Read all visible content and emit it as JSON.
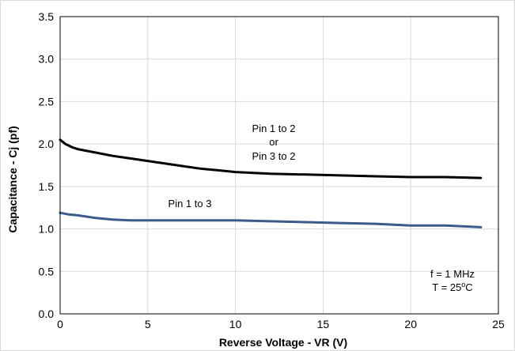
{
  "chart_data": {
    "type": "line",
    "xlabel": "Reverse Voltage - VR (V)",
    "ylabel": "Capacitance - Cj (pf)",
    "xlim": [
      0,
      25
    ],
    "ylim": [
      0,
      3.5
    ],
    "x_ticks": [
      "0",
      "5",
      "10",
      "15",
      "20",
      "25"
    ],
    "y_ticks": [
      "0.0",
      "0.5",
      "1.0",
      "1.5",
      "2.0",
      "2.5",
      "3.0",
      "3.5"
    ],
    "grid": true,
    "series": [
      {
        "color": "#000000",
        "x": [
          0,
          0.3,
          0.7,
          1,
          2,
          3,
          4,
          5,
          6,
          7,
          8,
          9,
          10,
          12,
          14,
          16,
          18,
          20,
          22,
          24
        ],
        "y": [
          2.05,
          2.0,
          1.96,
          1.94,
          1.9,
          1.86,
          1.83,
          1.8,
          1.77,
          1.74,
          1.71,
          1.69,
          1.67,
          1.65,
          1.64,
          1.63,
          1.62,
          1.61,
          1.61,
          1.6
        ]
      },
      {
        "color": "#3c5a8a",
        "x": [
          0,
          0.5,
          1,
          2,
          3,
          4,
          5,
          6,
          8,
          9,
          10,
          12,
          14,
          16,
          18,
          20,
          22,
          24
        ],
        "y": [
          1.19,
          1.17,
          1.16,
          1.13,
          1.11,
          1.1,
          1.1,
          1.1,
          1.1,
          1.1,
          1.1,
          1.09,
          1.08,
          1.07,
          1.06,
          1.04,
          1.04,
          1.02
        ]
      }
    ],
    "annotations": {
      "upper_line1": "Pin 1 to 2",
      "upper_line2": "or",
      "upper_line3": "Pin 3 to 2",
      "lower": "Pin 1 to 3",
      "freq": "f = 1 MHz",
      "temp_prefix": "T = 25",
      "temp_sup": "o",
      "temp_suffix": "C"
    }
  }
}
